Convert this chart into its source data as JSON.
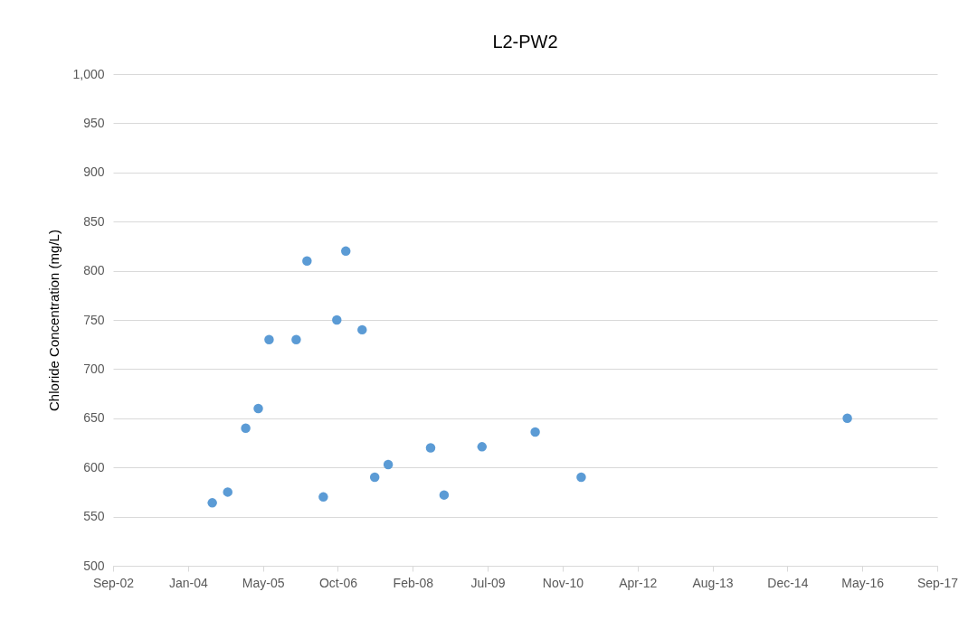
{
  "chart_data": {
    "type": "scatter",
    "title": "L2-PW2",
    "ylabel": "Chloride Concentration (mg/L)",
    "x": [
      "2004-06-24",
      "2004-10-05",
      "2005-02-02",
      "2005-04-27",
      "2005-07-08",
      "2006-01-05",
      "2006-03-18",
      "2006-07-05",
      "2006-10-03",
      "2006-12-02",
      "2007-03-21",
      "2007-06-13",
      "2007-09-11",
      "2008-06-20",
      "2008-09-18",
      "2009-05-29",
      "2010-05-19",
      "2011-03-22",
      "2016-01-31"
    ],
    "series": [
      {
        "color": "#5b9bd5",
        "values": [
          564,
          575,
          640,
          660,
          730,
          730,
          810,
          570,
          750,
          820,
          740,
          590,
          603,
          620,
          572,
          621,
          636,
          590,
          650
        ]
      }
    ],
    "xlim": [
      "2002-09-01",
      "2017-09-22"
    ],
    "xticks": [
      {
        "value": "2002-09-01",
        "label": "Sep-02"
      },
      {
        "value": "2004-01-14",
        "label": "Jan-04"
      },
      {
        "value": "2005-05-28",
        "label": "May-05"
      },
      {
        "value": "2006-10-10",
        "label": "Oct-06"
      },
      {
        "value": "2008-02-22",
        "label": "Feb-08"
      },
      {
        "value": "2009-07-06",
        "label": "Jul-09"
      },
      {
        "value": "2010-11-18",
        "label": "Nov-10"
      },
      {
        "value": "2012-04-01",
        "label": "Apr-12"
      },
      {
        "value": "2013-08-14",
        "label": "Aug-13"
      },
      {
        "value": "2014-12-27",
        "label": "Dec-14"
      },
      {
        "value": "2016-05-10",
        "label": "May-16"
      },
      {
        "value": "2017-09-22",
        "label": "Sep-17"
      }
    ],
    "ylim": [
      500,
      1000
    ],
    "yticks": [
      {
        "value": 500,
        "label": "500"
      },
      {
        "value": 550,
        "label": "550"
      },
      {
        "value": 600,
        "label": "600"
      },
      {
        "value": 650,
        "label": "650"
      },
      {
        "value": 700,
        "label": "700"
      },
      {
        "value": 750,
        "label": "750"
      },
      {
        "value": 800,
        "label": "800"
      },
      {
        "value": 850,
        "label": "850"
      },
      {
        "value": 900,
        "label": "900"
      },
      {
        "value": 950,
        "label": "950"
      },
      {
        "value": 1000,
        "label": "1,000"
      }
    ],
    "grid": "y",
    "marker": "circle"
  }
}
